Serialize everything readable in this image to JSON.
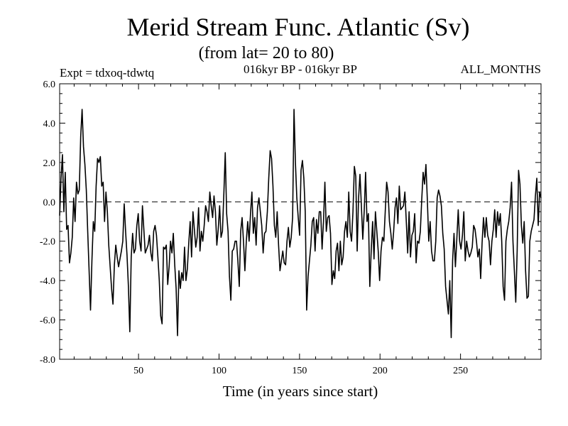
{
  "chart_data": {
    "type": "line",
    "title": "Merid Stream Func. Atlantic (Sv)",
    "subtitle": "(from lat= 20 to 80)",
    "experiment": "Expt = tdxoq-tdwtq",
    "period": "016kyr BP - 016kyr BP",
    "months": "ALL_MONTHS",
    "xlabel": "Time (in years since start)",
    "ylabel": "",
    "xlim": [
      1,
      300
    ],
    "ylim": [
      -8,
      6
    ],
    "xticks": [
      50,
      100,
      150,
      200,
      250
    ],
    "yticks": [
      -8,
      -6,
      -4,
      -2,
      0,
      2,
      4,
      6
    ],
    "ytick_labels": [
      "-8.0",
      "-6.0",
      "-4.0",
      "-2.0",
      "0.0",
      "2.0",
      "4.0",
      "6.0"
    ],
    "reference_line": {
      "y": 0,
      "style": "dashed"
    },
    "grid": false,
    "series": [
      {
        "color": "#000000",
        "values": [
          -0.7,
          1.2,
          2.4,
          -0.5,
          1.5,
          -1.4,
          -1.2,
          -3.1,
          -2.6,
          -1.8,
          0.2,
          -1.0,
          1.0,
          0.4,
          0.6,
          3.3,
          4.7,
          2.8,
          1.9,
          0.6,
          -1.5,
          -3.5,
          -5.5,
          -3.0,
          -1.0,
          -1.5,
          0.8,
          2.2,
          2.0,
          2.3,
          0.8,
          1.0,
          -1.0,
          0.5,
          -0.5,
          -2.2,
          -3.3,
          -4.4,
          -5.2,
          -3.2,
          -2.2,
          -2.8,
          -3.3,
          -2.9,
          -2.5,
          -2.0,
          -0.1,
          -1.5,
          -2.7,
          -4.3,
          -6.6,
          -2.8,
          -1.6,
          -2.6,
          -2.4,
          -1.2,
          -0.6,
          -2.0,
          -2.5,
          -0.2,
          -1.4,
          -2.6,
          -2.4,
          -2.2,
          -1.7,
          -2.6,
          -3.0,
          -1.5,
          -1.2,
          -1.7,
          -2.8,
          -4.0,
          -5.8,
          -6.2,
          -2.3,
          -2.4,
          -2.2,
          -4.2,
          -3.3,
          -2.0,
          -2.6,
          -1.6,
          -3.2,
          -4.4,
          -6.8,
          -3.5,
          -4.4,
          -3.6,
          -4.0,
          -2.3,
          -4.0,
          -3.4,
          -2.1,
          -1.0,
          -2.8,
          -0.5,
          -1.4,
          -2.3,
          -1.8,
          -0.3,
          -2.5,
          -1.5,
          -2.0,
          -1.2,
          -0.2,
          -0.5,
          -1.0,
          0.5,
          -0.2,
          -0.8,
          0.3,
          -0.5,
          -2.2,
          -1.4,
          -0.2,
          -1.8,
          -1.5,
          0.4,
          2.5,
          -0.6,
          -1.5,
          -3.8,
          -5.0,
          -2.5,
          -2.4,
          -2.0,
          -2.0,
          -3.0,
          -4.3,
          -1.5,
          -0.8,
          -2.0,
          -3.5,
          -2.0,
          -1.0,
          -2.0,
          -0.6,
          0.5,
          -1.6,
          -0.8,
          -2.2,
          -0.3,
          0.2,
          -0.5,
          -1.2,
          -2.6,
          -1.6,
          -1.5,
          -0.5,
          1.2,
          2.6,
          2.2,
          0.8,
          -1.2,
          -1.8,
          -0.5,
          -2.2,
          -3.5,
          -3.0,
          -2.5,
          -3.1,
          -3.2,
          -2.0,
          -1.3,
          -2.3,
          -1.8,
          -0.8,
          4.7,
          2.0,
          0.2,
          -0.8,
          -1.7,
          1.6,
          2.1,
          1.2,
          -0.5,
          -5.5,
          -3.8,
          -3.0,
          -2.2,
          -1.0,
          -0.8,
          -2.5,
          -0.9,
          -1.6,
          -0.5,
          -0.5,
          -2.4,
          -1.0,
          1.0,
          -1.5,
          -0.8,
          -0.7,
          -1.6,
          -4.2,
          -3.5,
          -3.9,
          -2.5,
          -2.1,
          -3.5,
          -2.0,
          -3.2,
          -2.8,
          -1.5,
          -1.0,
          -1.8,
          0.5,
          -1.5,
          -2.0,
          -0.5,
          1.8,
          1.3,
          -2.5,
          0.2,
          1.4,
          -0.2,
          -1.9,
          -0.5,
          1.5,
          -1.0,
          -0.6,
          -4.3,
          -2.5,
          -1.0,
          -2.9,
          -0.5,
          -1.5,
          -2.5,
          -4.0,
          -2.5,
          -1.8,
          -2.0,
          -0.5,
          1.0,
          0.5,
          -1.0,
          -1.6,
          -2.4,
          -1.5,
          -0.3,
          0.2,
          -1.1,
          0.8,
          -0.4,
          -0.3,
          -0.2,
          0.5,
          -1.0,
          -2.6,
          -0.5,
          -2.8,
          -1.7,
          -1.5,
          -0.6,
          -3.1,
          -2.0,
          -2.1,
          -1.5,
          0.1,
          1.5,
          0.9,
          1.9,
          0.1,
          -2.0,
          -1.0,
          -2.5,
          -3.0,
          -3.0,
          -2.0,
          0.2,
          0.6,
          0.3,
          -0.2,
          -1.6,
          -2.4,
          -4.3,
          -5.0,
          -5.7,
          -4.0,
          -6.9,
          -3.0,
          -1.6,
          -3.3,
          -1.9,
          -0.4,
          -2.0,
          -2.4,
          -1.7,
          -0.5,
          -3.0,
          -2.0,
          -2.5,
          -2.8,
          -2.6,
          -2.3,
          -1.2,
          -1.4,
          -2.0,
          -2.8,
          -2.4,
          -3.9,
          -2.1,
          -0.8,
          -1.8,
          -0.8,
          -1.7,
          -2.0,
          -3.2,
          -2.0,
          -1.4,
          -0.4,
          -1.8,
          -0.5,
          -1.2,
          -0.6,
          -2.0,
          -4.3,
          -5.0,
          -2.0,
          -1.4,
          -1.0,
          -0.3,
          1.0,
          -2.0,
          -3.5,
          -5.1,
          -2.5,
          1.6,
          0.9,
          -1.2,
          -2.1,
          -1.0,
          -3.5,
          -4.9,
          -4.8,
          -2.0,
          -1.5,
          -1.2,
          -0.9,
          0.3,
          1.2,
          -1.2,
          0.5,
          0.2
        ]
      }
    ]
  }
}
